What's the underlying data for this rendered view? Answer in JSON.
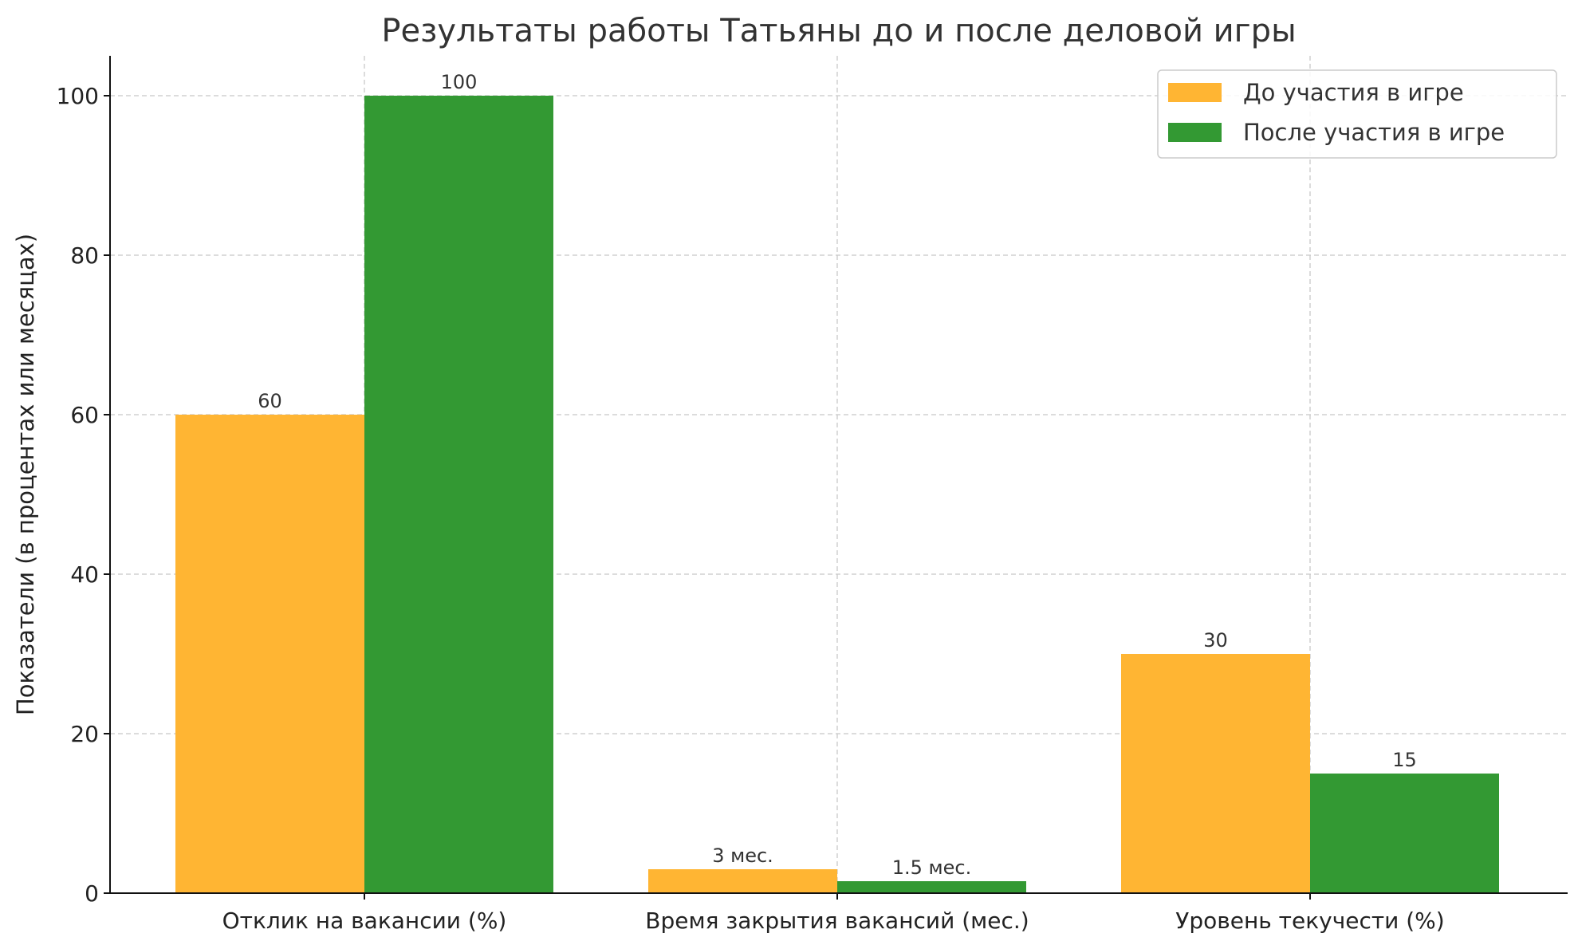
{
  "chart_data": {
    "type": "bar",
    "title": "Результаты работы Татьяны до и после деловой игры",
    "xlabel": "",
    "ylabel": "Показатели (в процентах или месяцах)",
    "categories": [
      "Отклик на вакансии (%)",
      "Время закрытия вакансий (мес.)",
      "Уровень текучести (%)"
    ],
    "series": [
      {
        "name": "До участия в игре",
        "color": "#FFB533",
        "values": [
          60,
          3,
          30
        ],
        "labels": [
          "60",
          "3 мес.",
          "30"
        ]
      },
      {
        "name": "После участия в игре",
        "color": "#339933",
        "values": [
          100,
          1.5,
          15
        ],
        "labels": [
          "100",
          "1.5 мес.",
          "15"
        ]
      }
    ],
    "ylim": [
      0,
      105
    ],
    "yticks": [
      0,
      20,
      40,
      60,
      80,
      100
    ],
    "grid": true,
    "legend_position": "top-right"
  }
}
